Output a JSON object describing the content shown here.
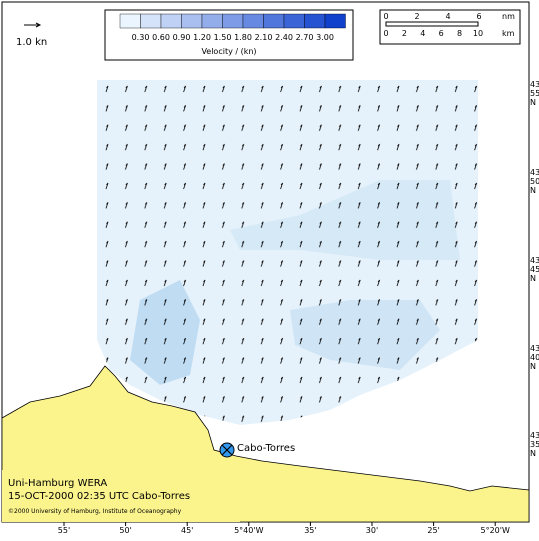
{
  "legend": {
    "scale_arrow_label": "1.0 kn",
    "colorbar_ticks": [
      "0.30",
      "0.60",
      "0.90",
      "1.20",
      "1.50",
      "1.80",
      "2.10",
      "2.40",
      "2.70",
      "3.00"
    ],
    "colorbar_title": "Velocity / (kn)"
  },
  "scale_bar": {
    "nm_ticks": [
      "0",
      "2",
      "4",
      "6"
    ],
    "nm_unit": "nm",
    "km_ticks": [
      "0",
      "2",
      "4",
      "6",
      "8",
      "10"
    ],
    "km_unit": "km"
  },
  "lat_labels": [
    [
      "43",
      "55",
      "N"
    ],
    [
      "43",
      "50",
      "N"
    ],
    [
      "43",
      "45",
      "N"
    ],
    [
      "43",
      "40",
      "N"
    ],
    [
      "43",
      "35",
      "N"
    ]
  ],
  "lon_labels": [
    "55'",
    "50'",
    "45'",
    "5°40'W",
    "35'",
    "30'",
    "25'",
    "5°20'W"
  ],
  "place": "Cabo-Torres",
  "info": [
    "Uni-Hamburg WERA",
    "15-OCT-2000 02:35 UTC Cabo-Torres",
    "©2000 University of Hamburg, Institute of Oceanography"
  ]
}
